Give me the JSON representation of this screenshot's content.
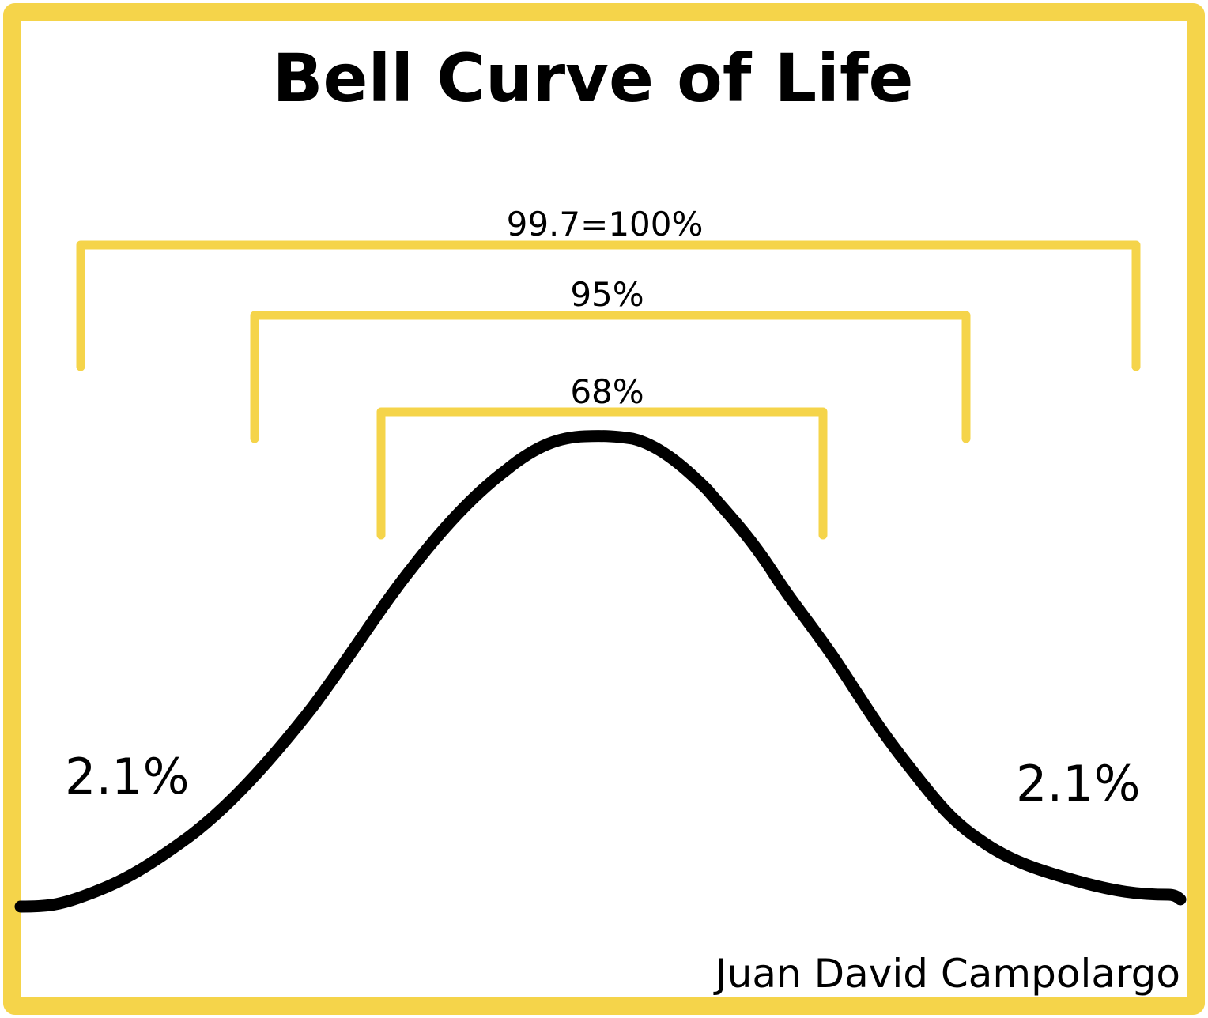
{
  "title": "Bell Curve of Life",
  "colors": {
    "frame": "#f5d44a",
    "bracket": "#f5d44a",
    "curve": "#000000",
    "text": "#000000",
    "background": "#ffffff"
  },
  "bands": [
    {
      "label": "99.7=100%"
    },
    {
      "label": "95%"
    },
    {
      "label": "68%"
    }
  ],
  "tails": {
    "left": "2.1%",
    "right": "2.1%"
  },
  "credit": "Juan David Campolargo"
}
